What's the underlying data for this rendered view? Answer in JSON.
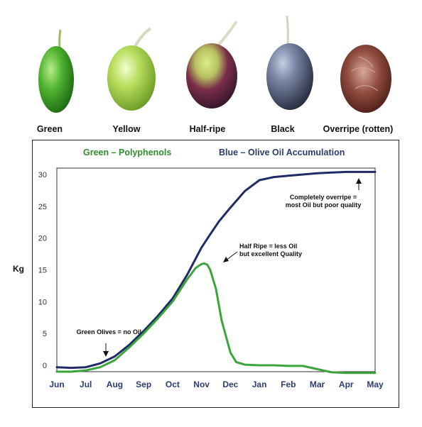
{
  "stages": [
    {
      "label": "Green",
      "color": "#5aa53a"
    },
    {
      "label": "Yellow",
      "color": "#9ec94a"
    },
    {
      "label": "Half-ripe",
      "color": "#6a2a3a"
    },
    {
      "label": "Black",
      "color": "#4c5a7a"
    },
    {
      "label": "Overripe (rotten)",
      "color": "#7a3a2e"
    }
  ],
  "chart_data": {
    "type": "line",
    "title": "",
    "xlabel": "",
    "ylabel": "Kg",
    "categories": [
      "Jun",
      "Jul",
      "Aug",
      "Sep",
      "Oct",
      "Nov",
      "Dec",
      "Jan",
      "Feb",
      "Mar",
      "Apr",
      "May"
    ],
    "yticks": [
      0,
      5,
      10,
      15,
      20,
      25,
      30
    ],
    "ylim": [
      -1,
      31
    ],
    "grid": false,
    "legend": [
      {
        "text": "Green – Polyphenols",
        "color": "#2f8f2a"
      },
      {
        "text": "Blue – Olive Oil Accumulation",
        "color": "#2c3d6e"
      }
    ],
    "series": [
      {
        "name": "Blue – Olive Oil Accumulation",
        "color": "#1f2a66",
        "x": [
          0,
          0.5,
          1,
          1.5,
          2,
          2.5,
          3,
          3.5,
          4,
          4.5,
          5,
          5.3,
          5.6,
          6,
          6.5,
          7,
          7.5,
          8,
          8.5,
          9,
          9.5,
          10,
          10.5,
          11
        ],
        "y": [
          -0.3,
          -0.4,
          -0.3,
          0.3,
          1.4,
          3.2,
          5.4,
          7.8,
          10.5,
          14.2,
          18.5,
          20.6,
          22.6,
          24.8,
          27.4,
          29.1,
          29.6,
          29.8,
          30.0,
          30.2,
          30.3,
          30.4,
          30.4,
          30.4
        ]
      },
      {
        "name": "Green – Polyphenols",
        "color": "#3aa63a",
        "x": [
          0,
          0.5,
          1,
          1.5,
          2,
          2.5,
          3,
          3.5,
          4,
          4.5,
          4.8,
          5,
          5.1,
          5.2,
          5.3,
          5.5,
          5.7,
          6,
          6.2,
          6.5,
          7,
          7.5,
          8,
          8.5,
          9,
          9.5,
          10,
          10.5,
          11
        ],
        "y": [
          -1.0,
          -1.0,
          -0.8,
          -0.3,
          0.8,
          2.8,
          5.0,
          7.4,
          10.0,
          13.5,
          15.3,
          15.9,
          16.0,
          15.8,
          15.0,
          12.0,
          7.0,
          2.0,
          0.5,
          0.1,
          0.0,
          0.0,
          -0.1,
          -0.1,
          -0.6,
          -1.1,
          -1.2,
          -1.2,
          -1.2
        ]
      }
    ],
    "annotations": [
      {
        "text": [
          "Green Olives = no Oil"
        ],
        "x": 1.8,
        "y": 1.8
      },
      {
        "text": [
          "Half Ripe = less Oil",
          "but excellent Quality"
        ],
        "x": 5.5,
        "y": 17.5
      },
      {
        "text": [
          "Completely overripe =",
          "most Oil but poor quality"
        ],
        "x": 10.5,
        "y": 29.8
      }
    ]
  }
}
